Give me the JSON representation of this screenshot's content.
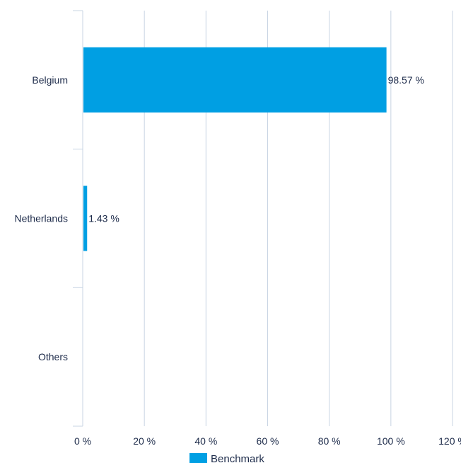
{
  "chart_data": {
    "type": "bar",
    "orientation": "horizontal",
    "categories": [
      "Belgium",
      "Netherlands",
      "Others"
    ],
    "series": [
      {
        "name": "Benchmark",
        "values": [
          98.57,
          1.43,
          0
        ],
        "color": "#009fe3"
      }
    ],
    "data_labels": [
      "98.57 %",
      "1.43 %",
      ""
    ],
    "x_ticks": [
      "0 %",
      "20 %",
      "40 %",
      "60 %",
      "80 %",
      "100 %",
      "120 %"
    ],
    "xlim": [
      0,
      120
    ],
    "grid": true,
    "legend_position": "bottom",
    "title": "",
    "xlabel": "",
    "ylabel": ""
  }
}
